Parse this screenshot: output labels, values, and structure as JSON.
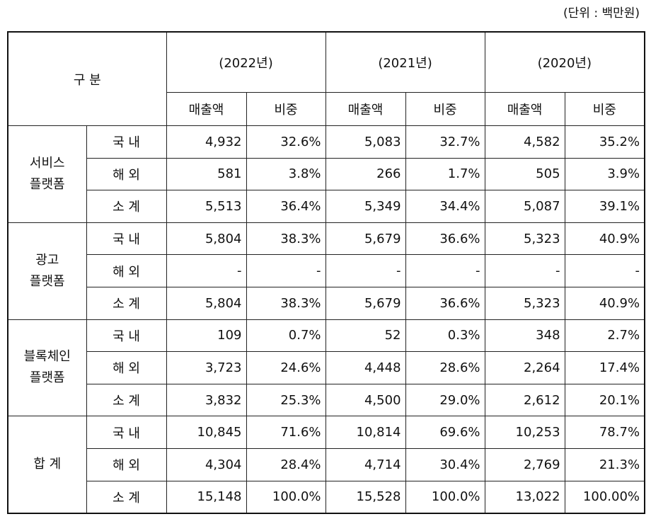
{
  "unit": "(단위 : 백만원)",
  "header": {
    "category": "구 분",
    "years": [
      "(2022년)",
      "(2021년)",
      "(2020년)"
    ],
    "revenue": "매출액",
    "share": "비중"
  },
  "groups": [
    {
      "name_line1": "서비스",
      "name_line2": "플랫폼",
      "rows": [
        {
          "label": "국 내",
          "values": [
            "4,932",
            "32.6%",
            "5,083",
            "32.7%",
            "4,582",
            "35.2%"
          ]
        },
        {
          "label": "해 외",
          "values": [
            "581",
            "3.8%",
            "266",
            "1.7%",
            "505",
            "3.9%"
          ]
        },
        {
          "label": "소 계",
          "values": [
            "5,513",
            "36.4%",
            "5,349",
            "34.4%",
            "5,087",
            "39.1%"
          ]
        }
      ]
    },
    {
      "name_line1": "광고",
      "name_line2": "플랫폼",
      "rows": [
        {
          "label": "국 내",
          "values": [
            "5,804",
            "38.3%",
            "5,679",
            "36.6%",
            "5,323",
            "40.9%"
          ]
        },
        {
          "label": "해 외",
          "values": [
            "-",
            "-",
            "-",
            "-",
            "-",
            "-"
          ]
        },
        {
          "label": "소 계",
          "values": [
            "5,804",
            "38.3%",
            "5,679",
            "36.6%",
            "5,323",
            "40.9%"
          ]
        }
      ]
    },
    {
      "name_line1": "블록체인",
      "name_line2": "플랫폼",
      "rows": [
        {
          "label": "국 내",
          "values": [
            "109",
            "0.7%",
            "52",
            "0.3%",
            "348",
            "2.7%"
          ]
        },
        {
          "label": "해 외",
          "values": [
            "3,723",
            "24.6%",
            "4,448",
            "28.6%",
            "2,264",
            "17.4%"
          ]
        },
        {
          "label": "소 계",
          "values": [
            "3,832",
            "25.3%",
            "4,500",
            "29.0%",
            "2,612",
            "20.1%"
          ]
        }
      ]
    },
    {
      "name_line1": "합 계",
      "name_line2": "",
      "rows": [
        {
          "label": "국 내",
          "values": [
            "10,845",
            "71.6%",
            "10,814",
            "69.6%",
            "10,253",
            "78.7%"
          ]
        },
        {
          "label": "해 외",
          "values": [
            "4,304",
            "28.4%",
            "4,714",
            "30.4%",
            "2,769",
            "21.3%"
          ]
        },
        {
          "label": "소 계",
          "values": [
            "15,148",
            "100.0%",
            "15,528",
            "100.0%",
            "13,022",
            "100.00%"
          ]
        }
      ]
    }
  ]
}
